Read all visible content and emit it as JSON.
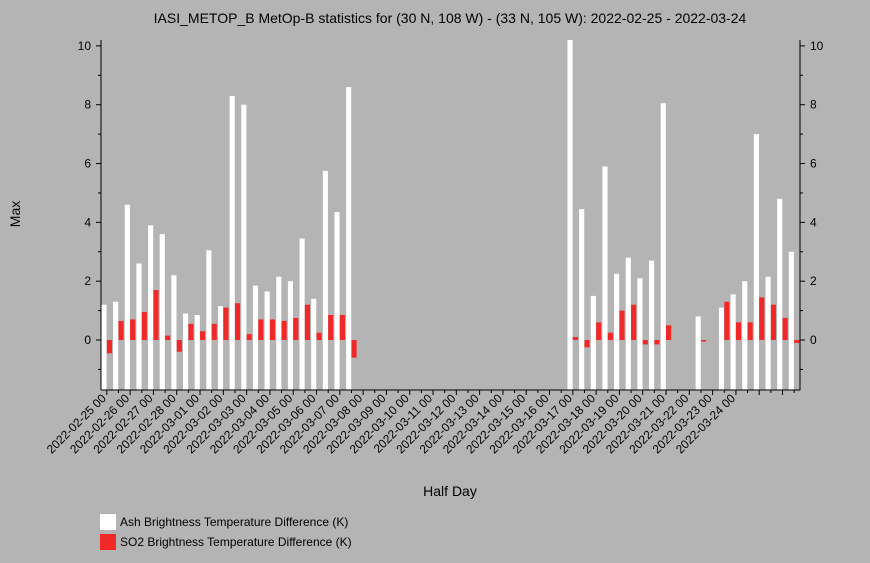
{
  "chart_data": {
    "type": "bar",
    "title": "IASI_METOP_B MetOp-B statistics for (30 N, 108 W) - (33 N, 105 W): 2022-02-25 - 2022-03-24",
    "xlabel": "Half Day",
    "ylabel": "Max",
    "ylim": [
      -1.7,
      10.2
    ],
    "yticks": [
      0,
      2,
      4,
      6,
      8,
      10
    ],
    "x_tick_labels": [
      "2022-02-25 00",
      "2022-02-26 00",
      "2022-02-27 00",
      "2022-02-28 00",
      "2022-03-01 00",
      "2022-03-02 00",
      "2022-03-03 00",
      "2022-03-04 00",
      "2022-03-05 00",
      "2022-03-06 00",
      "2022-03-07 00",
      "2022-03-08 00",
      "2022-03-09 00",
      "2022-03-10 00",
      "2022-03-11 00",
      "2022-03-12 00",
      "2022-03-13 00",
      "2022-03-14 00",
      "2022-03-15 00",
      "2022-03-16 00",
      "2022-03-17 00",
      "2022-03-18 00",
      "2022-03-19 00",
      "2022-03-20 00",
      "2022-03-21 00",
      "2022-03-22 00",
      "2022-03-23 00",
      "2022-03-24 00"
    ],
    "series": [
      {
        "name": "Ash Brightness Temperature Difference (K)",
        "color": "#ffffff",
        "values": [
          1.2,
          1.3,
          4.6,
          2.6,
          3.9,
          3.6,
          2.2,
          0.9,
          0.85,
          3.05,
          1.15,
          8.3,
          8.0,
          1.85,
          1.65,
          2.15,
          2.0,
          3.45,
          1.4,
          5.75,
          4.35,
          8.6,
          null,
          null,
          null,
          null,
          null,
          null,
          null,
          null,
          null,
          null,
          null,
          null,
          null,
          null,
          null,
          null,
          null,
          null,
          10.2,
          4.45,
          1.5,
          5.9,
          2.25,
          2.8,
          2.1,
          2.7,
          8.05,
          null,
          null,
          0.8,
          null,
          1.1,
          1.55,
          2.0,
          7.0,
          2.15,
          4.8,
          3.0
        ]
      },
      {
        "name": "SO2 Brightness Temperature Difference (K)",
        "color": "#f02828",
        "values": [
          -0.45,
          0.65,
          0.7,
          0.95,
          1.7,
          0.15,
          -0.4,
          0.55,
          0.3,
          0.55,
          1.1,
          1.25,
          0.2,
          0.7,
          0.7,
          0.65,
          0.75,
          1.2,
          0.25,
          0.85,
          0.85,
          -0.6,
          null,
          null,
          null,
          null,
          null,
          null,
          null,
          null,
          null,
          null,
          null,
          null,
          null,
          null,
          null,
          null,
          null,
          null,
          0.1,
          -0.25,
          0.6,
          0.25,
          1.0,
          1.2,
          -0.15,
          -0.15,
          0.5,
          null,
          null,
          0.0,
          null,
          1.3,
          0.6,
          0.6,
          1.45,
          1.2,
          0.75,
          -0.1
        ]
      }
    ],
    "grid": false,
    "legend_position": "bottom-left"
  }
}
